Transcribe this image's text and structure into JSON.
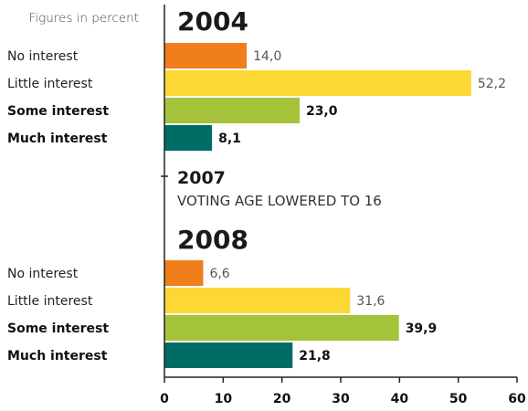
{
  "chart_data": {
    "type": "bar",
    "orientation": "horizontal",
    "note": "Figures in percent",
    "xlim": [
      0,
      60
    ],
    "x_ticks": [
      "0",
      "10",
      "20",
      "30",
      "40",
      "50",
      "60"
    ],
    "grid": false,
    "legend": "none",
    "categories": [
      "No interest",
      "Little interest",
      "Some interest",
      "Much interest"
    ],
    "emphasized_categories": [
      "Some interest",
      "Much interest"
    ],
    "colors": [
      "#f07e1a",
      "#fdd835",
      "#a4c23a",
      "#006c66"
    ],
    "groups": [
      {
        "year": "2004",
        "values": [
          14.0,
          52.2,
          23.0,
          8.1
        ],
        "labels": [
          "14,0",
          "52,2",
          "23,0",
          "8,1"
        ]
      },
      {
        "year": "2008",
        "values": [
          6.6,
          31.6,
          39.9,
          21.8
        ],
        "labels": [
          "6,6",
          "31,6",
          "39,9",
          "21,8"
        ]
      }
    ],
    "annotation": {
      "year": "2007",
      "text": "VOTING AGE LOWERED TO 16"
    }
  }
}
